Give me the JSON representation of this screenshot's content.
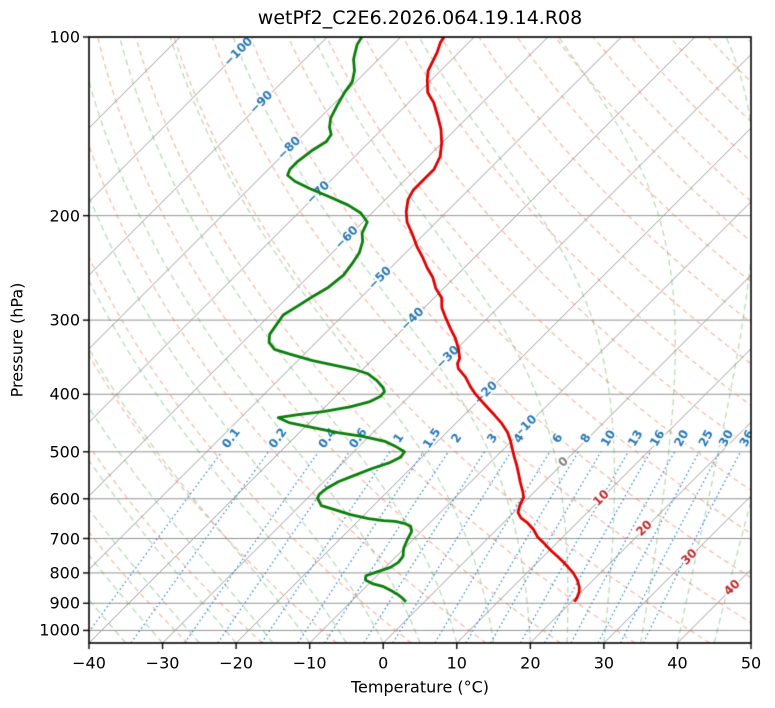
{
  "title": "wetPf2_C2E6.2026.064.19.14.R08",
  "axes": {
    "x_label": "Temperature (°C)",
    "y_label": "Pressure (hPa)",
    "x_ticks": [
      -40,
      -30,
      -20,
      -10,
      0,
      10,
      20,
      30,
      40,
      50
    ],
    "y_ticks": [
      100,
      200,
      300,
      400,
      500,
      600,
      700,
      800,
      900,
      1000
    ]
  },
  "chart_data": {
    "type": "line",
    "variant": "skew-t-log-p",
    "title": "wetPf2_C2E6.2026.064.19.14.R08",
    "xlabel": "Temperature (°C)",
    "ylabel": "Pressure (hPa)",
    "xlim_c": [
      -40,
      50
    ],
    "plim_hpa": [
      100,
      1050
    ],
    "skew": "45deg_isotherms",
    "grid": true,
    "isotherms_c": {
      "start": -110,
      "end": 50,
      "step": 10
    },
    "isotherm_labels": [
      {
        "t": -100,
        "p": 106
      },
      {
        "t": -90,
        "p": 129
      },
      {
        "t": -80,
        "p": 154
      },
      {
        "t": -70,
        "p": 183
      },
      {
        "t": -60,
        "p": 218
      },
      {
        "t": -50,
        "p": 255
      },
      {
        "t": -40,
        "p": 299
      },
      {
        "t": -30,
        "p": 347
      },
      {
        "t": -20,
        "p": 398
      },
      {
        "t": -10,
        "p": 454
      },
      {
        "t": 0,
        "p": 521
      },
      {
        "t": 10,
        "p": 599
      },
      {
        "t": 20,
        "p": 674
      },
      {
        "t": 30,
        "p": 753
      },
      {
        "t": 40,
        "p": 848
      }
    ],
    "dry_adiabats_c": {
      "start": -30,
      "end": 200,
      "step": 10
    },
    "moist_adiabats_c": {
      "start": -40,
      "end": 50,
      "step": 5
    },
    "mixing_ratio_g_kg": [
      0.1,
      0.2,
      0.4,
      0.6,
      1,
      1.5,
      2,
      3,
      4,
      6,
      8,
      10,
      13,
      16,
      20,
      25,
      30,
      36
    ],
    "mixing_ratio_labels": [
      "0.1",
      "0.2",
      "0.4",
      "0.6",
      "1",
      "1.5",
      "2",
      "3",
      "4",
      "6",
      "8",
      "10",
      "13",
      "16",
      "20",
      "25",
      "30",
      "36"
    ],
    "mixing_line_top_hpa": 500,
    "mixing_label_hpa": 475,
    "series": [
      {
        "name": "temperature",
        "color": "#df0000",
        "points_p_t": [
          [
            895,
            20.4
          ],
          [
            881,
            20.2
          ],
          [
            861,
            19.7
          ],
          [
            844,
            19.0
          ],
          [
            822,
            17.8
          ],
          [
            800,
            16.3
          ],
          [
            782,
            14.8
          ],
          [
            766,
            13.4
          ],
          [
            749,
            11.8
          ],
          [
            731,
            10.0
          ],
          [
            714,
            8.4
          ],
          [
            695,
            6.5
          ],
          [
            676,
            5.0
          ],
          [
            658,
            3.2
          ],
          [
            646,
            1.7
          ],
          [
            633,
            0.6
          ],
          [
            614,
            -0.2
          ],
          [
            597,
            -0.7
          ],
          [
            585,
            -1.5
          ],
          [
            563,
            -3.2
          ],
          [
            542,
            -4.8
          ],
          [
            527,
            -6.0
          ],
          [
            511,
            -7.4
          ],
          [
            496,
            -8.7
          ],
          [
            479,
            -10.2
          ],
          [
            464,
            -11.7
          ],
          [
            446,
            -14.0
          ],
          [
            434,
            -15.8
          ],
          [
            417,
            -18.5
          ],
          [
            401,
            -21.1
          ],
          [
            389,
            -22.9
          ],
          [
            374,
            -25.0
          ],
          [
            362,
            -27.1
          ],
          [
            355,
            -27.9
          ],
          [
            348,
            -28.3
          ],
          [
            335,
            -29.8
          ],
          [
            322,
            -31.6
          ],
          [
            310,
            -33.6
          ],
          [
            298,
            -35.6
          ],
          [
            286,
            -37.6
          ],
          [
            275,
            -39.0
          ],
          [
            265,
            -41.1
          ],
          [
            254,
            -43.0
          ],
          [
            245,
            -45.0
          ],
          [
            235,
            -47.1
          ],
          [
            226,
            -49.2
          ],
          [
            215,
            -51.6
          ],
          [
            205,
            -54.0
          ],
          [
            197,
            -55.5
          ],
          [
            188,
            -56.9
          ],
          [
            181,
            -57.5
          ],
          [
            174,
            -57.5
          ],
          [
            167,
            -57.5
          ],
          [
            159,
            -58.4
          ],
          [
            151,
            -60.0
          ],
          [
            143,
            -62.0
          ],
          [
            136,
            -64.2
          ],
          [
            129,
            -66.6
          ],
          [
            124,
            -68.8
          ],
          [
            118,
            -70.6
          ],
          [
            114,
            -71.7
          ],
          [
            106,
            -73.0
          ],
          [
            102,
            -73.9
          ],
          [
            100,
            -74.1
          ]
        ]
      },
      {
        "name": "dewpoint",
        "color": "#0a7e0a",
        "points_p_t": [
          [
            895,
            -2.5
          ],
          [
            881,
            -3.6
          ],
          [
            871,
            -4.5
          ],
          [
            858,
            -5.9
          ],
          [
            844,
            -7.6
          ],
          [
            835,
            -9.4
          ],
          [
            822,
            -11.0
          ],
          [
            809,
            -11.5
          ],
          [
            797,
            -10.5
          ],
          [
            783,
            -9.3
          ],
          [
            768,
            -8.9
          ],
          [
            750,
            -9.1
          ],
          [
            727,
            -10.1
          ],
          [
            702,
            -10.8
          ],
          [
            681,
            -11.3
          ],
          [
            668,
            -12.1
          ],
          [
            660,
            -13.4
          ],
          [
            655,
            -14.9
          ],
          [
            653,
            -16.6
          ],
          [
            648,
            -18.9
          ],
          [
            638,
            -21.9
          ],
          [
            625,
            -24.9
          ],
          [
            616,
            -27.1
          ],
          [
            599,
            -28.6
          ],
          [
            590,
            -28.9
          ],
          [
            576,
            -28.7
          ],
          [
            561,
            -28.0
          ],
          [
            549,
            -26.8
          ],
          [
            534,
            -25.3
          ],
          [
            522,
            -23.7
          ],
          [
            510,
            -22.9
          ],
          [
            500,
            -23.1
          ],
          [
            491,
            -24.8
          ],
          [
            480,
            -27.2
          ],
          [
            471,
            -30.9
          ],
          [
            464,
            -34.8
          ],
          [
            455,
            -39.0
          ],
          [
            447,
            -42.6
          ],
          [
            438,
            -44.9
          ],
          [
            433,
            -42.6
          ],
          [
            428,
            -39.6
          ],
          [
            420,
            -36.6
          ],
          [
            412,
            -34.7
          ],
          [
            403,
            -33.9
          ],
          [
            396,
            -34.0
          ],
          [
            390,
            -34.7
          ],
          [
            379,
            -36.6
          ],
          [
            369,
            -38.8
          ],
          [
            364,
            -40.8
          ],
          [
            358,
            -44.1
          ],
          [
            351,
            -48.0
          ],
          [
            342,
            -52.1
          ],
          [
            336,
            -54.7
          ],
          [
            327,
            -56.4
          ],
          [
            317,
            -57.4
          ],
          [
            305,
            -57.8
          ],
          [
            294,
            -58.2
          ],
          [
            285,
            -57.5
          ],
          [
            274,
            -56.7
          ],
          [
            264,
            -55.8
          ],
          [
            252,
            -55.4
          ],
          [
            241,
            -55.8
          ],
          [
            231,
            -56.3
          ],
          [
            221,
            -57.4
          ],
          [
            214,
            -58.6
          ],
          [
            205,
            -59.4
          ],
          [
            198,
            -61.5
          ],
          [
            192,
            -64.3
          ],
          [
            186,
            -67.9
          ],
          [
            180,
            -71.8
          ],
          [
            175,
            -74.8
          ],
          [
            171,
            -76.6
          ],
          [
            167,
            -77.1
          ],
          [
            162,
            -77.1
          ],
          [
            155,
            -76.6
          ],
          [
            150,
            -75.9
          ],
          [
            146,
            -76.2
          ],
          [
            142,
            -77.4
          ],
          [
            137,
            -78.5
          ],
          [
            130,
            -79.4
          ],
          [
            124,
            -80.1
          ],
          [
            119,
            -80.5
          ],
          [
            114,
            -81.7
          ],
          [
            109,
            -83.4
          ],
          [
            103,
            -84.9
          ],
          [
            100,
            -85.3
          ]
        ]
      }
    ]
  },
  "colors": {
    "temperature": "#df0000",
    "dewpoint": "#0a7e0a",
    "isotherm_line": "#9c9c9c",
    "grid_line": "#949494",
    "spine": "#000000",
    "dry_adiabat": "rgba(235,95,60,0.42)",
    "moist_adiabat": "rgba(60,150,60,0.35)",
    "mixing_line": "rgba(35,125,200,0.85)",
    "label_negative": "#2878b4",
    "label_zero": "#808080",
    "label_positive": "#c02828",
    "halo": "#ffffff"
  }
}
